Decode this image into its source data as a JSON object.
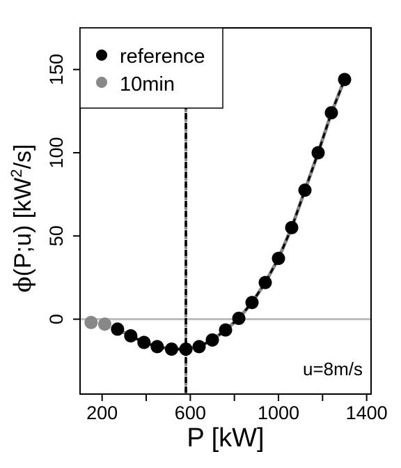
{
  "chart_data": {
    "type": "scatter",
    "xlabel": "P [kW]",
    "ylabel": {
      "phi": "ϕ",
      "rest": "(P;u) [kW",
      "sup": "2",
      "tail": "/s]"
    },
    "annotation": "u=8m/s",
    "xlim": [
      100,
      1420
    ],
    "ylim": [
      -45,
      175
    ],
    "x_ticks": [
      200,
      600,
      1000,
      1400
    ],
    "x_minor_ticks": [
      400,
      800,
      1200
    ],
    "y_ticks": [
      0,
      50,
      100,
      150
    ],
    "zero_line": 0,
    "vertical_line_x": 580,
    "legend": {
      "position": "top-left",
      "entries": [
        {
          "label": "reference",
          "color": "#000000"
        },
        {
          "label": "10min",
          "color": "#888888"
        }
      ]
    },
    "series": [
      {
        "name": "reference",
        "color": "#000000",
        "points": [
          [
            270,
            -6
          ],
          [
            330,
            -10
          ],
          [
            390,
            -14
          ],
          [
            450,
            -16.5
          ],
          [
            515,
            -18
          ],
          [
            580,
            -18
          ],
          [
            640,
            -16.5
          ],
          [
            700,
            -12.5
          ],
          [
            760,
            -6.5
          ],
          [
            820,
            0.5
          ],
          [
            880,
            10
          ],
          [
            940,
            22
          ],
          [
            1000,
            36.5
          ],
          [
            1060,
            55
          ],
          [
            1120,
            77.5
          ],
          [
            1180,
            100
          ],
          [
            1240,
            124
          ],
          [
            1300,
            144
          ]
        ]
      },
      {
        "name": "10min",
        "color": "#888888",
        "points": [
          [
            150,
            -2
          ],
          [
            212,
            -3
          ]
        ]
      }
    ]
  }
}
